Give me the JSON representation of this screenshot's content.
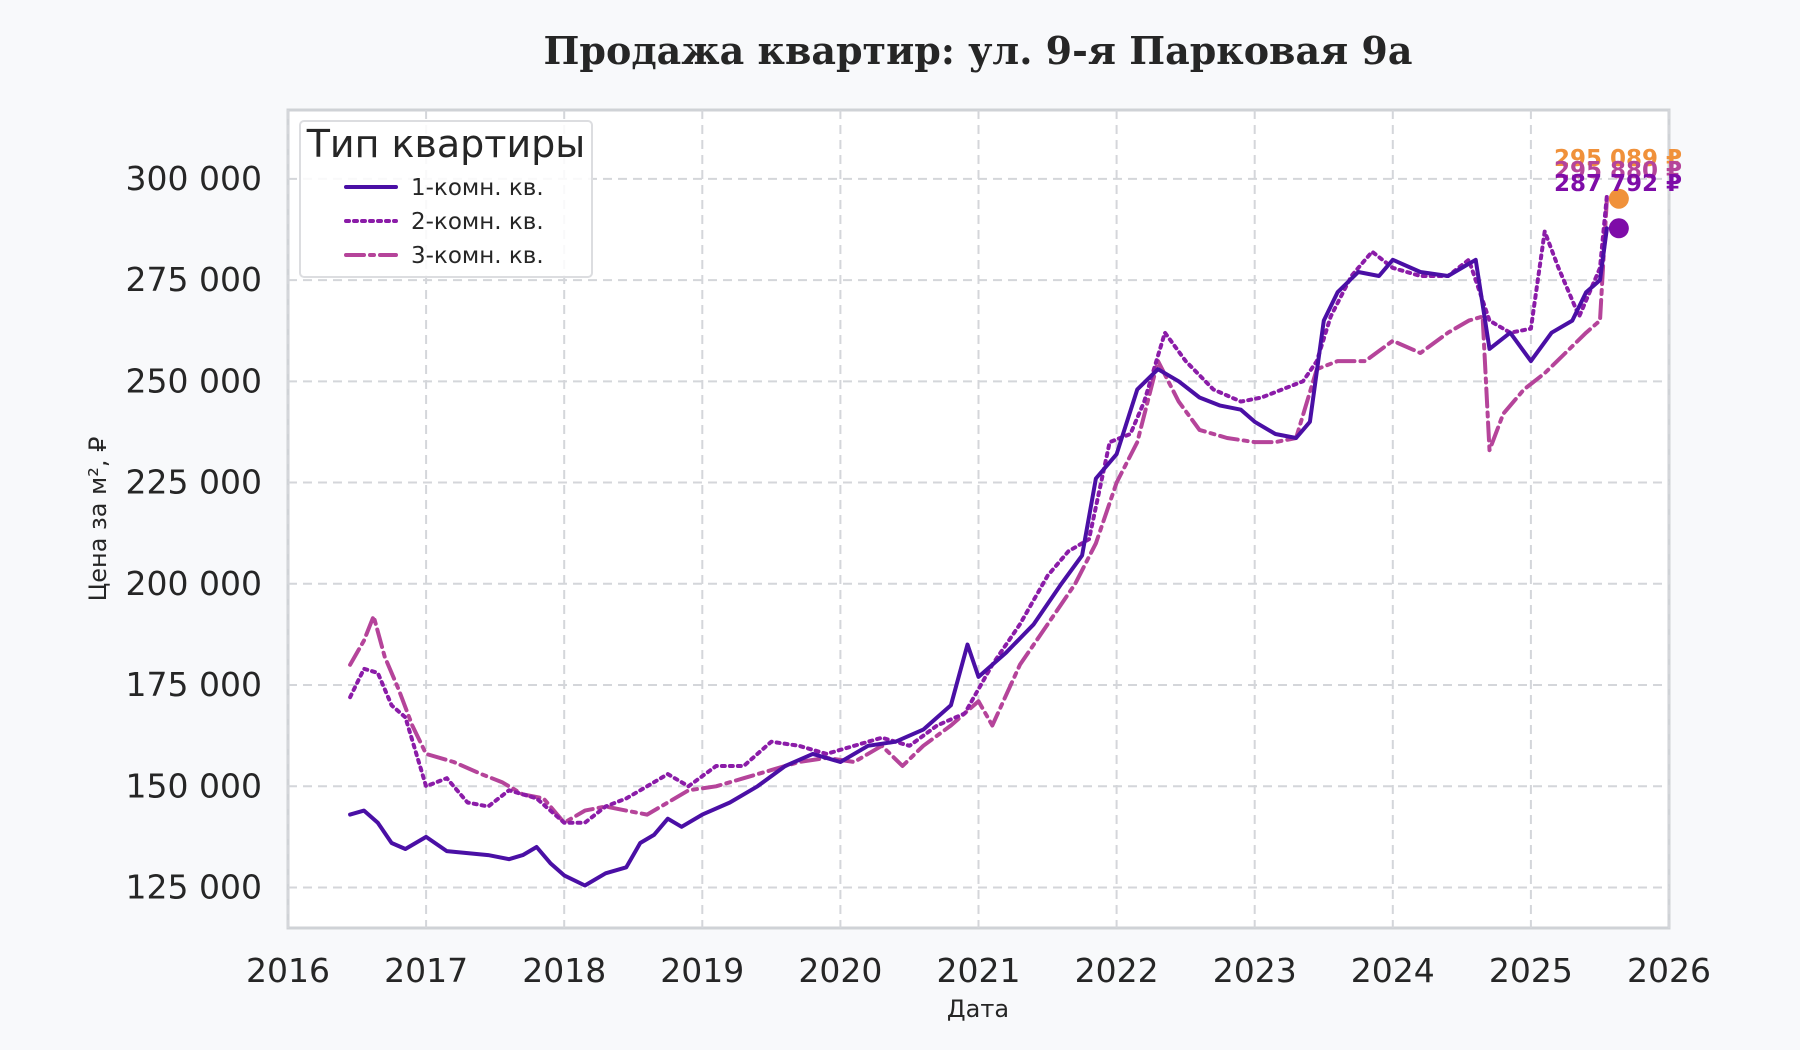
{
  "chart_data": {
    "type": "line",
    "title": "Продажа квартир: ул. 9-я Парковая 9а",
    "xlabel": "Дата",
    "ylabel": "Цена за м², ₽",
    "xlim": [
      2016,
      2026
    ],
    "ylim": [
      115000,
      317000
    ],
    "x_ticks": [
      2016,
      2017,
      2018,
      2019,
      2020,
      2021,
      2022,
      2023,
      2024,
      2025,
      2026
    ],
    "x_tick_labels": [
      "2016",
      "2017",
      "2018",
      "2019",
      "2020",
      "2021",
      "2022",
      "2023",
      "2024",
      "2025",
      "2026"
    ],
    "y_ticks": [
      125000,
      150000,
      175000,
      200000,
      225000,
      250000,
      275000,
      300000
    ],
    "y_tick_labels": [
      "125 000",
      "150 000",
      "175 000",
      "200 000",
      "225 000",
      "250 000",
      "275 000",
      "300 000"
    ],
    "grid": true,
    "legend": {
      "title": "Тип квартиры",
      "position": "top-left"
    },
    "series": [
      {
        "name": "1-комн. кв.",
        "color": "#4a0fa5",
        "style": "solid",
        "x": [
          2016.45,
          2016.55,
          2016.65,
          2016.75,
          2016.85,
          2017.0,
          2017.15,
          2017.3,
          2017.45,
          2017.6,
          2017.7,
          2017.8,
          2017.9,
          2018.0,
          2018.15,
          2018.3,
          2018.45,
          2018.55,
          2018.65,
          2018.75,
          2018.85,
          2019.0,
          2019.2,
          2019.4,
          2019.6,
          2019.8,
          2020.0,
          2020.2,
          2020.4,
          2020.6,
          2020.8,
          2020.92,
          2021.0,
          2021.2,
          2021.4,
          2021.6,
          2021.75,
          2021.85,
          2022.0,
          2022.15,
          2022.3,
          2022.45,
          2022.6,
          2022.75,
          2022.9,
          2023.0,
          2023.15,
          2023.3,
          2023.4,
          2023.5,
          2023.6,
          2023.75,
          2023.9,
          2024.0,
          2024.2,
          2024.4,
          2024.5,
          2024.6,
          2024.7,
          2024.85,
          2025.0,
          2025.15,
          2025.3,
          2025.4,
          2025.5,
          2025.55
        ],
        "values": [
          143000,
          144000,
          141000,
          136000,
          134500,
          137500,
          134000,
          133500,
          133000,
          132000,
          133000,
          135000,
          131000,
          128000,
          125500,
          128500,
          130000,
          136000,
          138000,
          142000,
          140000,
          143000,
          146000,
          150000,
          155000,
          158000,
          156000,
          160000,
          161000,
          164000,
          170000,
          185000,
          177000,
          183000,
          190000,
          200000,
          207000,
          226000,
          232000,
          248000,
          253000,
          250000,
          246000,
          244000,
          243000,
          240000,
          237000,
          236000,
          240000,
          265000,
          272000,
          277000,
          276000,
          280000,
          277000,
          276000,
          278000,
          280000,
          258000,
          262000,
          255000,
          262000,
          265000,
          272000,
          275000,
          287792
        ]
      },
      {
        "name": "2-комн. кв.",
        "color": "#8b1ca8",
        "style": "dotted",
        "x": [
          2016.45,
          2016.55,
          2016.65,
          2016.75,
          2016.85,
          2017.0,
          2017.15,
          2017.3,
          2017.45,
          2017.6,
          2017.8,
          2018.0,
          2018.15,
          2018.3,
          2018.45,
          2018.6,
          2018.75,
          2018.9,
          2019.1,
          2019.3,
          2019.5,
          2019.7,
          2019.9,
          2020.1,
          2020.3,
          2020.5,
          2020.7,
          2020.9,
          2021.1,
          2021.3,
          2021.5,
          2021.65,
          2021.8,
          2021.95,
          2022.1,
          2022.2,
          2022.35,
          2022.5,
          2022.7,
          2022.9,
          2023.05,
          2023.2,
          2023.35,
          2023.45,
          2023.55,
          2023.7,
          2023.85,
          2024.0,
          2024.2,
          2024.4,
          2024.55,
          2024.7,
          2024.85,
          2025.0,
          2025.1,
          2025.2,
          2025.35,
          2025.5,
          2025.55
        ],
        "values": [
          172000,
          179000,
          178000,
          170000,
          167000,
          150000,
          152000,
          146000,
          145000,
          149000,
          147000,
          141000,
          141000,
          145000,
          147000,
          150000,
          153000,
          150000,
          155000,
          155000,
          161000,
          160000,
          158000,
          160000,
          162000,
          160000,
          165000,
          168000,
          180000,
          190000,
          202000,
          208000,
          211000,
          235000,
          237000,
          245000,
          262000,
          255000,
          248000,
          245000,
          246000,
          248000,
          250000,
          255000,
          266000,
          276000,
          282000,
          278000,
          276000,
          276000,
          280000,
          265000,
          262000,
          263000,
          287000,
          278000,
          266000,
          278000,
          295880
        ]
      },
      {
        "name": "3-комн. кв.",
        "color": "#b5449a",
        "style": "dashdot",
        "x": [
          2016.45,
          2016.55,
          2016.62,
          2016.7,
          2016.8,
          2016.9,
          2017.0,
          2017.2,
          2017.4,
          2017.55,
          2017.7,
          2017.85,
          2018.0,
          2018.15,
          2018.3,
          2018.45,
          2018.6,
          2018.75,
          2018.9,
          2019.1,
          2019.3,
          2019.5,
          2019.7,
          2019.9,
          2020.1,
          2020.3,
          2020.45,
          2020.6,
          2020.8,
          2021.0,
          2021.1,
          2021.3,
          2021.5,
          2021.7,
          2021.85,
          2022.0,
          2022.15,
          2022.3,
          2022.45,
          2022.6,
          2022.8,
          2023.0,
          2023.15,
          2023.3,
          2023.45,
          2023.6,
          2023.8,
          2024.0,
          2024.2,
          2024.4,
          2024.55,
          2024.65,
          2024.7,
          2024.8,
          2024.95,
          2025.1,
          2025.25,
          2025.4,
          2025.5,
          2025.55
        ],
        "values": [
          180000,
          186000,
          192000,
          182000,
          174000,
          165000,
          158000,
          156000,
          153000,
          151000,
          148000,
          147000,
          141000,
          144000,
          145000,
          144000,
          143000,
          146000,
          149000,
          150000,
          152000,
          154000,
          156000,
          157000,
          156000,
          160000,
          155000,
          160000,
          165000,
          171000,
          165000,
          180000,
          190000,
          200000,
          210000,
          225000,
          235000,
          255000,
          245000,
          238000,
          236000,
          235000,
          235000,
          236000,
          253000,
          255000,
          255000,
          260000,
          257000,
          262000,
          265000,
          266000,
          233000,
          242000,
          248000,
          252000,
          257000,
          262000,
          265000,
          295089
        ]
      }
    ],
    "end_labels": [
      {
        "series": "3-комн. кв.",
        "text": "295 089 ₽",
        "value": 295089,
        "color": "#f0913a"
      },
      {
        "series": "2-комн. кв.",
        "text": "295 880 ₽",
        "value": 295880,
        "color": "#b5449a"
      },
      {
        "series": "1-комн. кв.",
        "text": "287 792 ₽",
        "value": 287792,
        "color": "#7e0ca8"
      }
    ]
  }
}
